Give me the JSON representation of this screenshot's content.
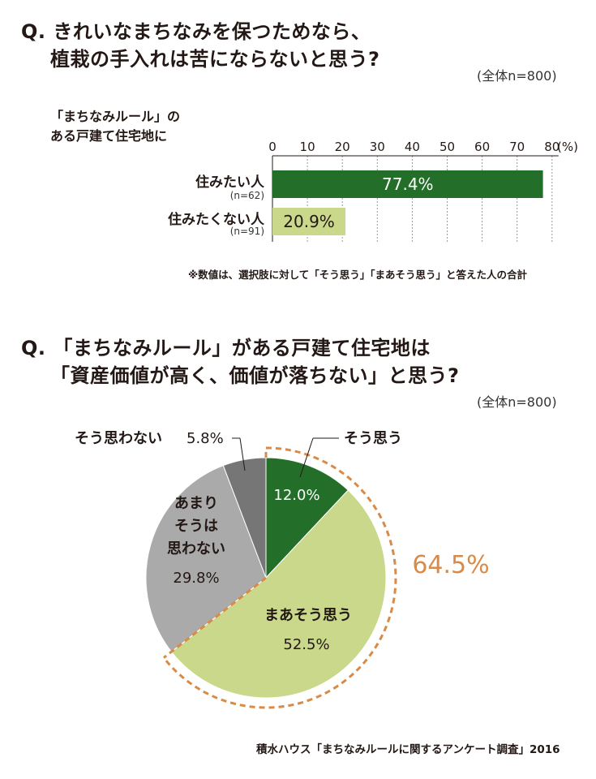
{
  "q1": {
    "title_line1": "Q. きれいなまちなみを保つためなら、",
    "title_line2": "植栽の手入れは苦にならないと思う?",
    "sample": "(全体n=800)",
    "context_line1": "「まちなみルール」の",
    "context_line2": "ある戸建て住宅地に",
    "note": "※数値は、選択肢に対して「そう思う」「まあそう思う」と答えた人の合計"
  },
  "q2": {
    "title_line1": "Q. 「まちなみルール」がある戸建て住宅地は",
    "title_line2": "「資産価値が高く、価値が落ちない」と思う?",
    "sample": "(全体n=800)",
    "combined_label": "64.5%"
  },
  "source": "積水ハウス「まちなみルールに関するアンケート調査」2016",
  "colors": {
    "dark_green": "#236f2a",
    "light_green": "#c9d88a",
    "gray": "#aaaaaa",
    "dark_gray": "#767676",
    "orange": "#d98a46"
  },
  "chart_data": [
    {
      "type": "bar",
      "orientation": "horizontal",
      "categories": [
        "住みたい人",
        "住みたくない人"
      ],
      "category_n": [
        "(n=62)",
        "(n=91)"
      ],
      "values": [
        77.4,
        20.9
      ],
      "value_labels": [
        "77.4%",
        "20.9%"
      ],
      "xlim": [
        0,
        80
      ],
      "ticks": [
        "0",
        "10",
        "20",
        "30",
        "40",
        "50",
        "60",
        "70",
        "80"
      ],
      "unit": "(%)"
    },
    {
      "type": "pie",
      "slices": [
        {
          "label": "そう思う",
          "value": 12.0,
          "value_label": "12.0%"
        },
        {
          "label": "まあそう思う",
          "value": 52.5,
          "value_label": "52.5%"
        },
        {
          "label": "あまりそうは思わない",
          "value": 29.8,
          "value_label": "29.8%"
        },
        {
          "label": "そう思わない",
          "value": 5.8,
          "value_label": "5.8%"
        }
      ]
    }
  ]
}
